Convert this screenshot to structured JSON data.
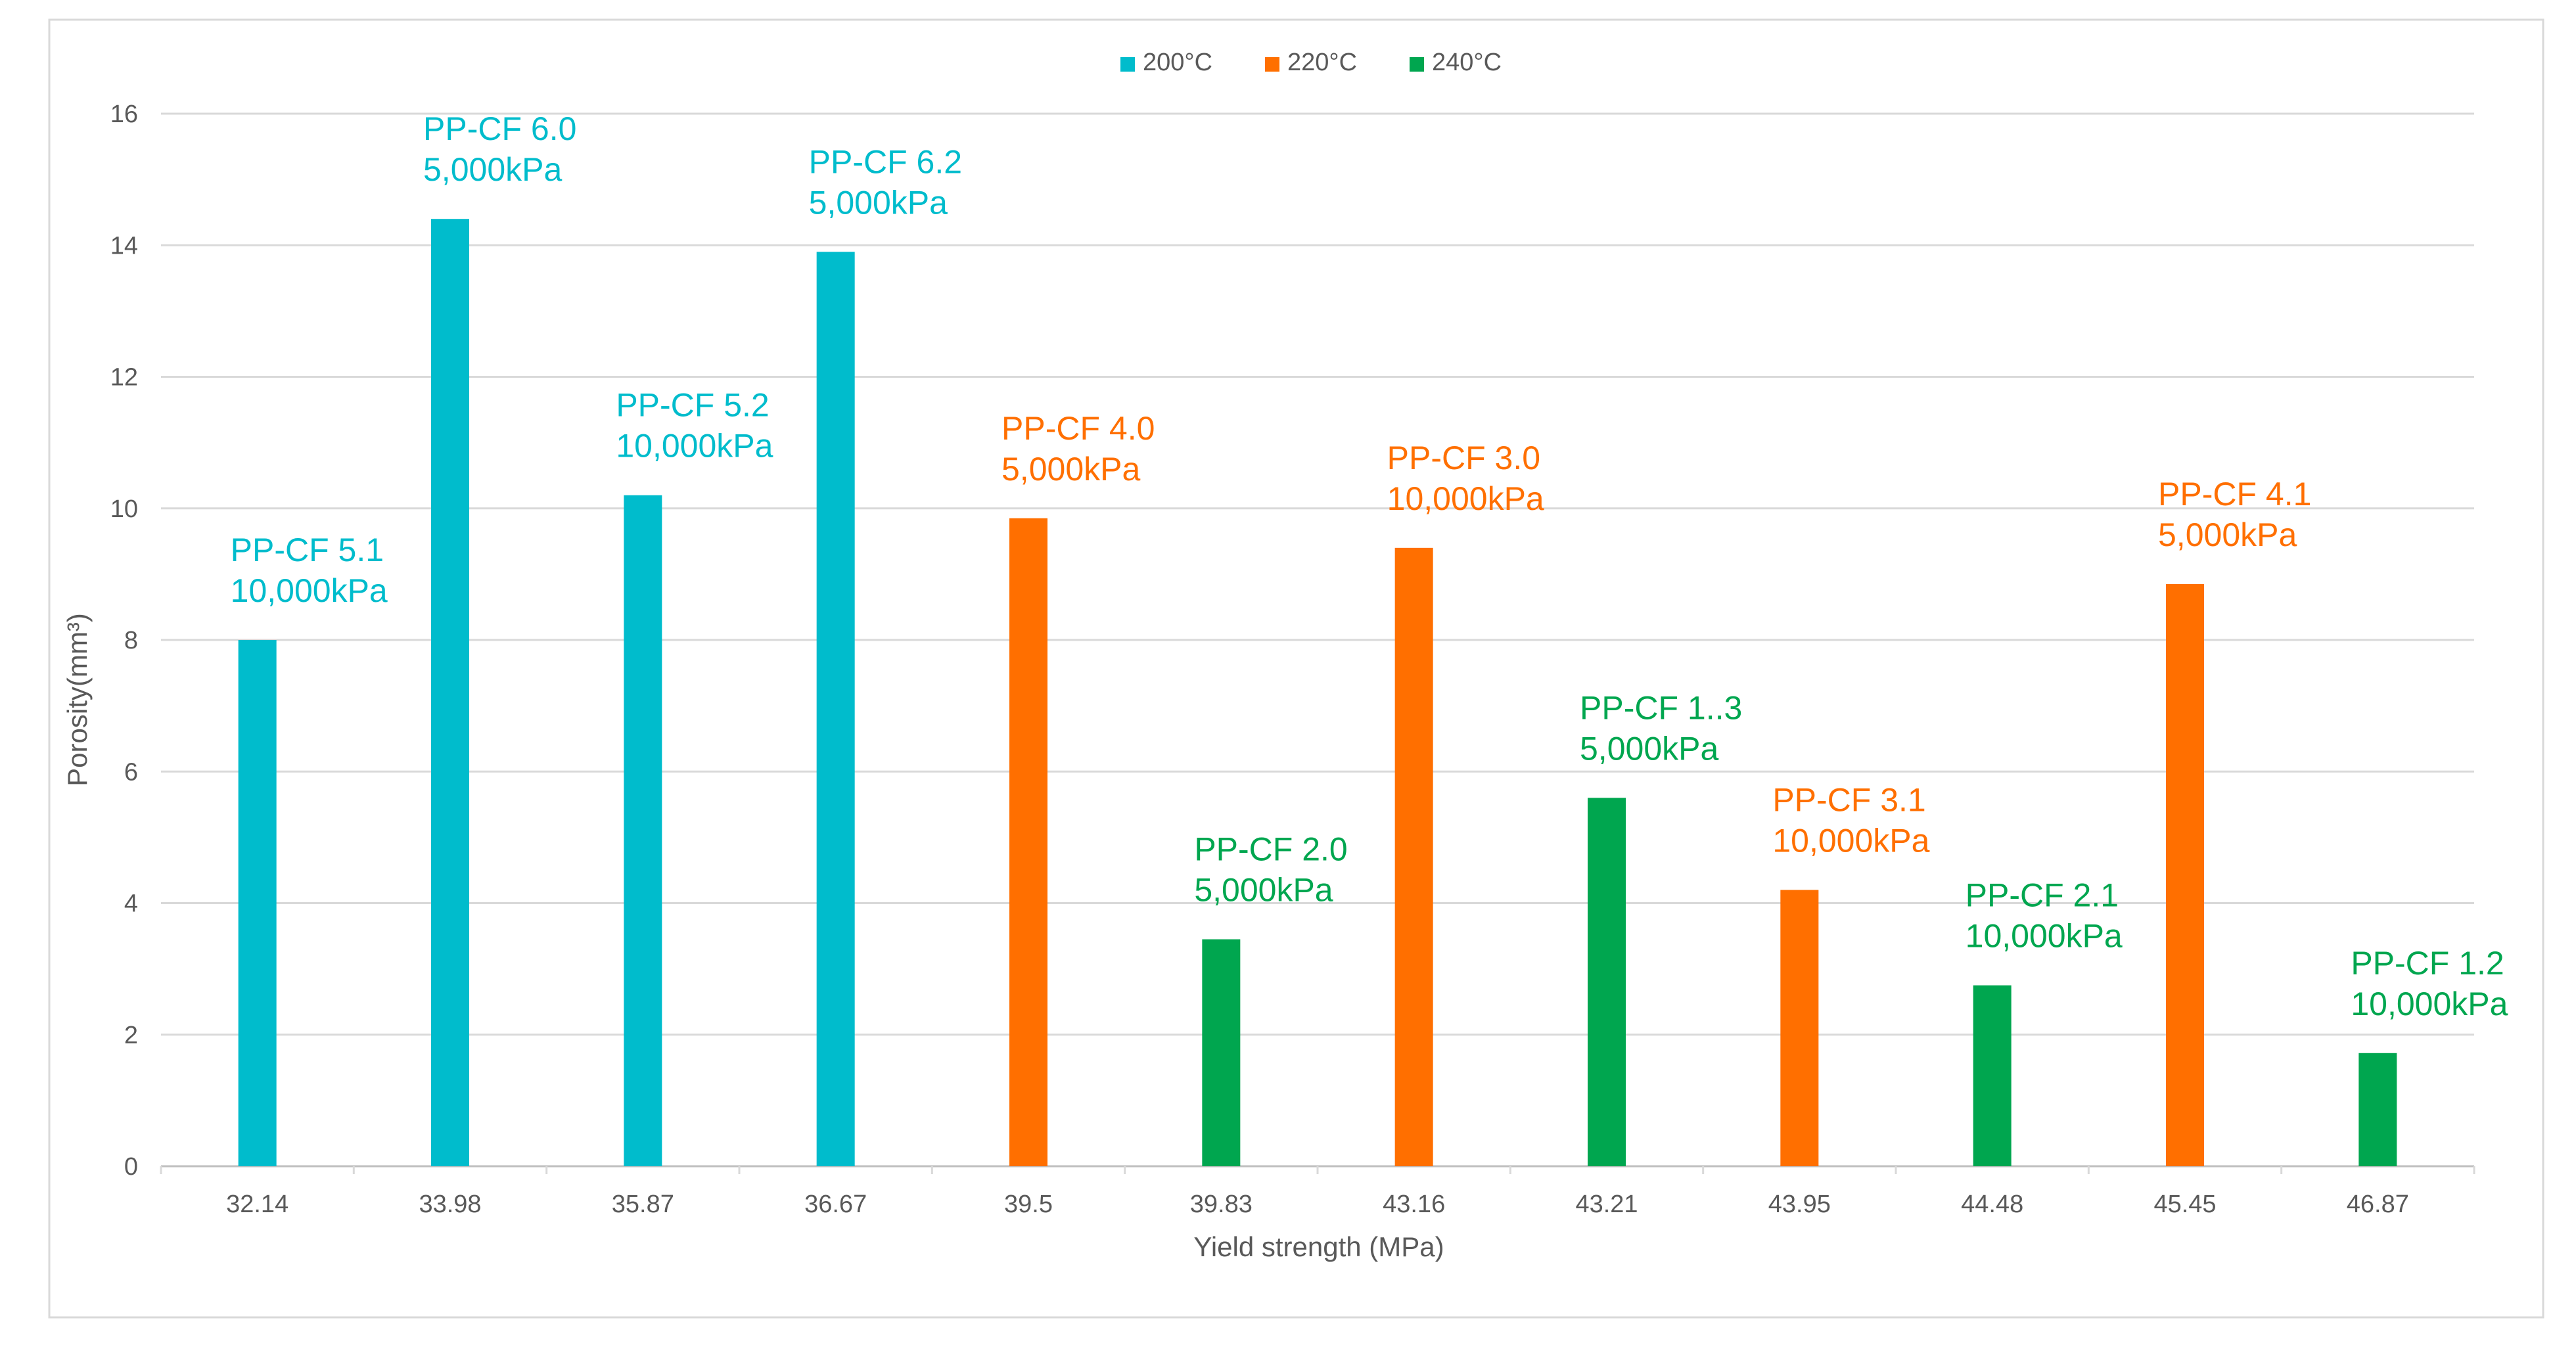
{
  "chart_data": {
    "type": "bar",
    "title": "",
    "xlabel": "Yield strength (MPa)",
    "ylabel": "Porosity(mm³)",
    "ylim": [
      0,
      16
    ],
    "yticks": [
      "0",
      "2",
      "4",
      "6",
      "8",
      "10",
      "12",
      "14",
      "16"
    ],
    "grid": true,
    "legend_position": "top-center",
    "categories": [
      "32.14",
      "33.98",
      "35.87",
      "36.67",
      "39.5",
      "39.83",
      "43.16",
      "43.21",
      "43.95",
      "44.48",
      "45.45",
      "46.87"
    ],
    "series": [
      {
        "name": "200°C",
        "color": "#00BCCC",
        "values": [
          8.0,
          14.4,
          10.2,
          13.9,
          null,
          null,
          null,
          null,
          null,
          null,
          null,
          null
        ]
      },
      {
        "name": "220°C",
        "color": "#FF6F00",
        "values": [
          null,
          null,
          null,
          null,
          9.85,
          null,
          9.4,
          null,
          4.2,
          null,
          8.85,
          null
        ]
      },
      {
        "name": "240°C",
        "color": "#00A64F",
        "values": [
          null,
          null,
          null,
          null,
          null,
          3.45,
          null,
          5.6,
          null,
          2.75,
          null,
          1.72
        ]
      }
    ],
    "annotations": [
      {
        "category": "32.14",
        "series": "200°C",
        "lines": [
          "PP-CF 5.1",
          "10,000kPa"
        ]
      },
      {
        "category": "33.98",
        "series": "200°C",
        "lines": [
          "PP-CF 6.0",
          "5,000kPa"
        ]
      },
      {
        "category": "35.87",
        "series": "200°C",
        "lines": [
          "PP-CF 5.2",
          "10,000kPa"
        ]
      },
      {
        "category": "36.67",
        "series": "200°C",
        "lines": [
          "PP-CF 6.2",
          "5,000kPa"
        ]
      },
      {
        "category": "39.5",
        "series": "220°C",
        "lines": [
          "PP-CF 4.0",
          "5,000kPa"
        ]
      },
      {
        "category": "39.83",
        "series": "240°C",
        "lines": [
          "PP-CF 2.0",
          "5,000kPa"
        ]
      },
      {
        "category": "43.16",
        "series": "220°C",
        "lines": [
          "PP-CF 3.0",
          "10,000kPa"
        ]
      },
      {
        "category": "43.21",
        "series": "240°C",
        "lines": [
          "PP-CF 1..3",
          "5,000kPa"
        ]
      },
      {
        "category": "43.95",
        "series": "220°C",
        "lines": [
          "PP-CF 3.1",
          "10,000kPa"
        ]
      },
      {
        "category": "44.48",
        "series": "240°C",
        "lines": [
          "PP-CF 2.1",
          "10,000kPa"
        ]
      },
      {
        "category": "45.45",
        "series": "220°C",
        "lines": [
          "PP-CF 4.1",
          "5,000kPa"
        ]
      },
      {
        "category": "46.87",
        "series": "240°C",
        "lines": [
          "PP-CF 1.2",
          "10,000kPa"
        ]
      }
    ]
  }
}
